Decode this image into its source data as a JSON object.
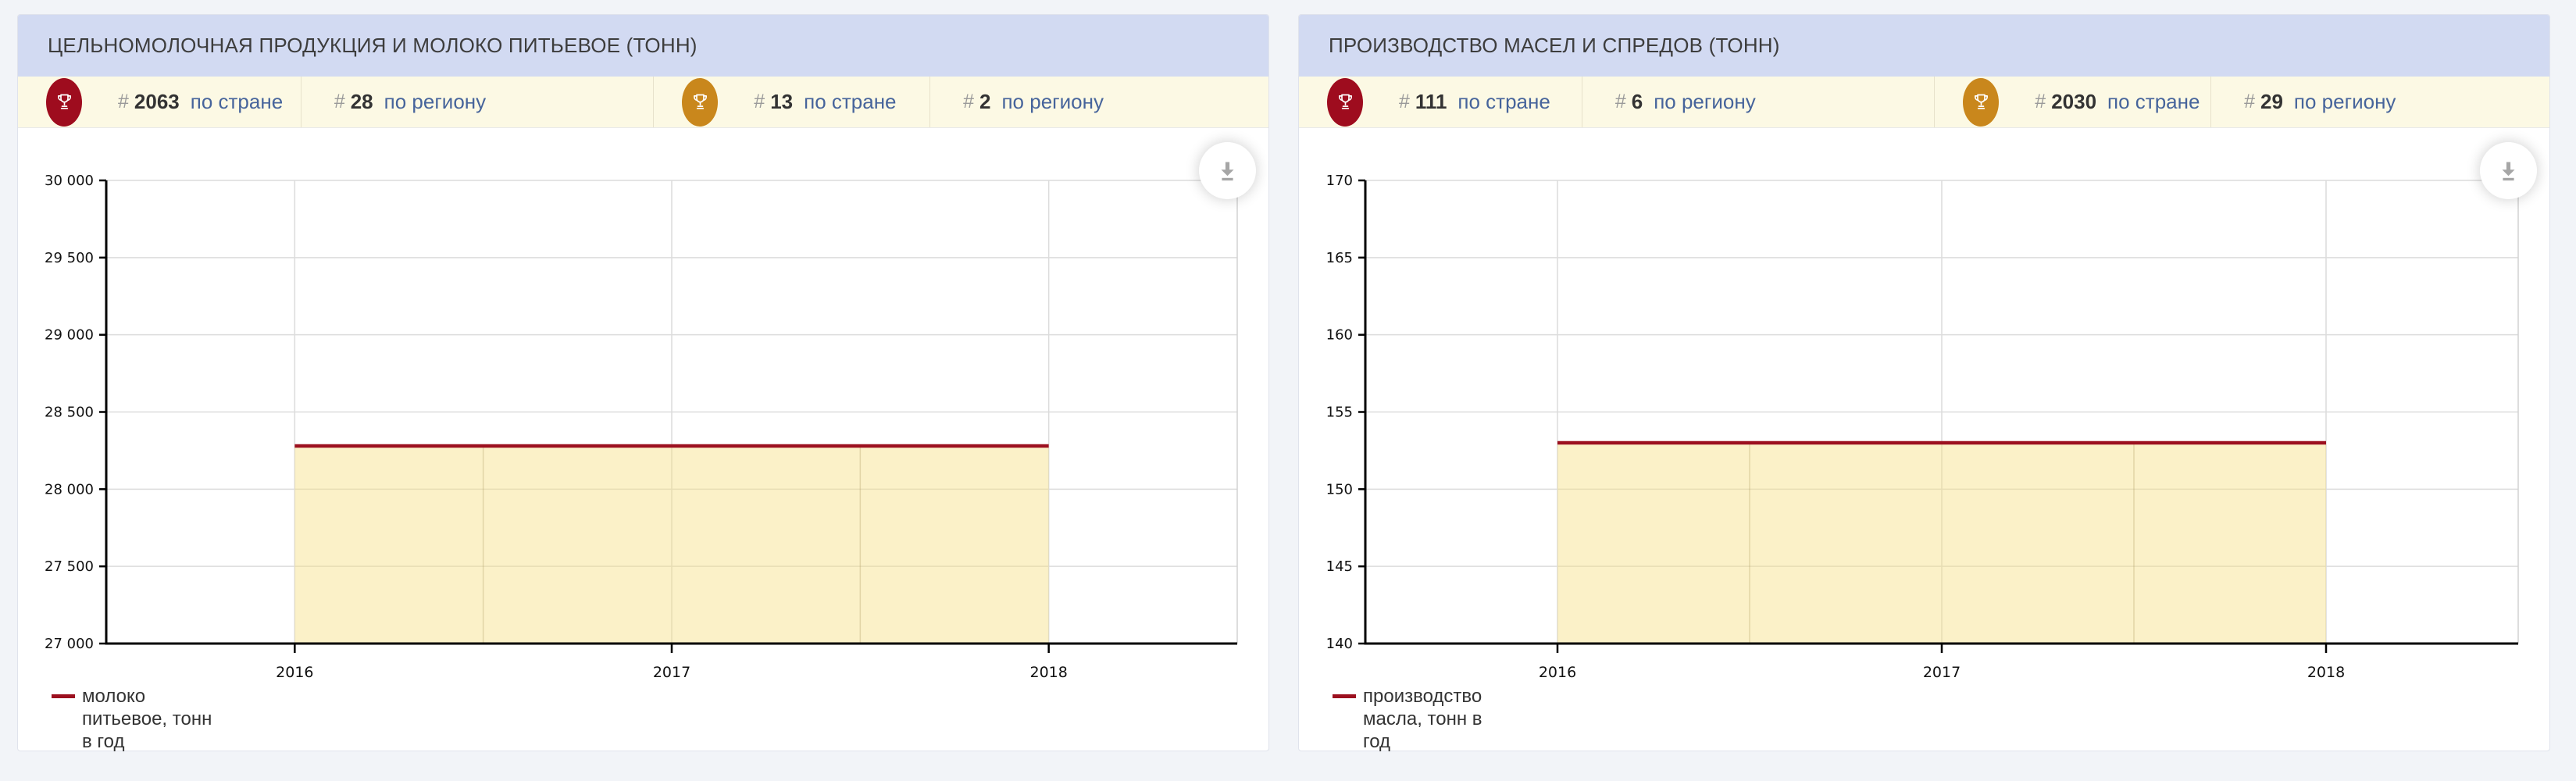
{
  "page": {
    "background": "#f2f4f8"
  },
  "panels": [
    {
      "title": "ЦЕЛЬНОМОЛОЧНАЯ ПРОДУКЦИЯ И МОЛОКО ПИТЬЕВОЕ (ТОНН)",
      "badge_cells": [
        {
          "hash": "#",
          "rank": "2063",
          "label": "по стране",
          "icon": "trophy-icon",
          "icon_color": "#9e0c1e"
        },
        {
          "hash": "#",
          "rank": "28",
          "label": "по региону"
        },
        {
          "hash": "#",
          "rank": "13",
          "label": "по стране",
          "icon": "trophy-icon",
          "icon_color": "#c9871c"
        },
        {
          "hash": "#",
          "rank": "2",
          "label": "по региону"
        }
      ],
      "legend": "молоко\nпитьевое, тонн\nв год"
    },
    {
      "title": "ПРОИЗВОДСТВО МАСЕЛ И СПРЕДОВ (ТОНН)",
      "badge_cells": [
        {
          "hash": "#",
          "rank": "111",
          "label": "по стране",
          "icon": "trophy-icon",
          "icon_color": "#9e0c1e"
        },
        {
          "hash": "#",
          "rank": "6",
          "label": "по региону"
        },
        {
          "hash": "#",
          "rank": "2030",
          "label": "по стране",
          "icon": "trophy-icon",
          "icon_color": "#c9871c"
        },
        {
          "hash": "#",
          "rank": "29",
          "label": "по региону"
        }
      ],
      "legend": "производство\nмасла, тонн в\nгод"
    }
  ],
  "chart_data": [
    {
      "type": "area",
      "title": "ЦЕЛЬНОМОЛОЧНАЯ ПРОДУКЦИЯ И МОЛОКО ПИТЬЕВОЕ (ТОНН)",
      "x": [
        "2016",
        "2017",
        "2018"
      ],
      "series": [
        {
          "name": "молоко питьевое, тонн в год",
          "values": [
            28280,
            28280,
            28280
          ]
        }
      ],
      "ylim": [
        27000,
        30000
      ],
      "ytick_labels": [
        "27 000",
        "27 500",
        "28 000",
        "28 500",
        "29 000",
        "29 500",
        "30 000"
      ],
      "grid": true,
      "legend_position": "bottom-left",
      "line_color": "#9c101f",
      "fill_color": "rgba(246,222,124,0.42)"
    },
    {
      "type": "area",
      "title": "ПРОИЗВОДСТВО МАСЕЛ И СПРЕДОВ (ТОНН)",
      "x": [
        "2016",
        "2017",
        "2018"
      ],
      "series": [
        {
          "name": "производство масла, тонн в год",
          "values": [
            153,
            153,
            153
          ]
        }
      ],
      "ylim": [
        140,
        170
      ],
      "ytick_labels": [
        "140",
        "145",
        "150",
        "155",
        "160",
        "165",
        "170"
      ],
      "grid": true,
      "legend_position": "bottom-left",
      "line_color": "#9c101f",
      "fill_color": "rgba(246,222,124,0.42)"
    }
  ]
}
